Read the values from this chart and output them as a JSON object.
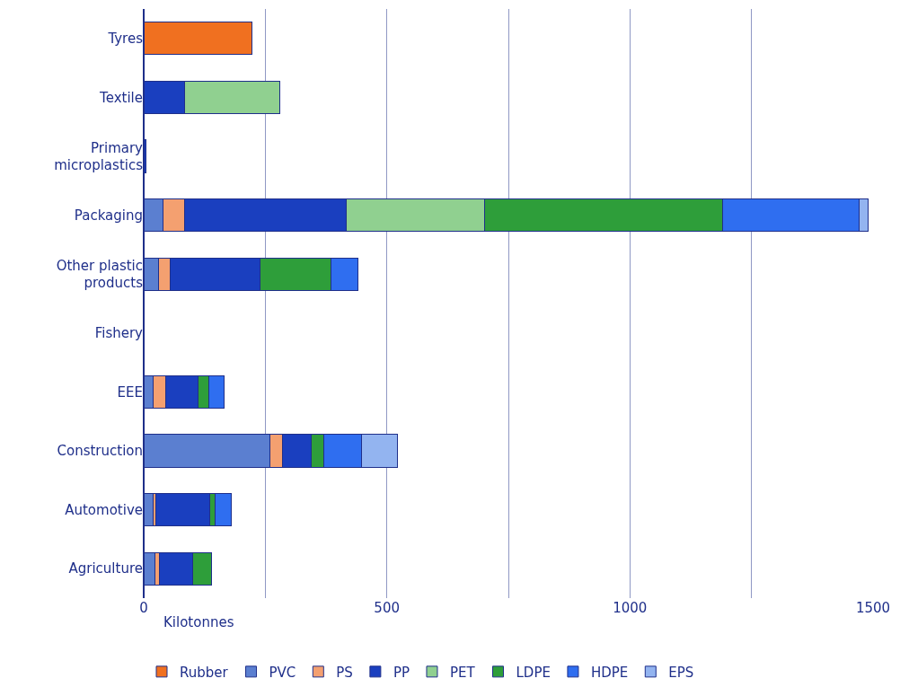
{
  "chart_data": {
    "type": "bar",
    "orientation": "horizontal",
    "stacked": true,
    "xlabel": "Kilotonnes",
    "categories": [
      "Tyres",
      "Textile",
      "Primary microplastics",
      "Packaging",
      "Other plastic products",
      "Fishery",
      "EEE",
      "Construction",
      "Automotive",
      "Agriculture"
    ],
    "series": [
      {
        "name": "Rubber",
        "color": "#f07020",
        "values": [
          223,
          null,
          null,
          null,
          null,
          null,
          null,
          null,
          null,
          null
        ]
      },
      {
        "name": "PVC",
        "color": "#5b7fd0",
        "values": [
          null,
          null,
          null,
          40,
          30,
          null,
          19,
          259,
          19,
          24
        ]
      },
      {
        "name": "PS",
        "color": "#f4a070",
        "values": [
          null,
          null,
          null,
          44,
          24,
          null,
          27,
          27,
          6,
          9
        ]
      },
      {
        "name": "PP",
        "color": "#1a3fbf",
        "values": [
          null,
          84,
          4,
          333,
          186,
          null,
          65,
          58,
          110,
          67
        ]
      },
      {
        "name": "PET",
        "color": "#90d090",
        "values": [
          null,
          195,
          null,
          284,
          null,
          null,
          null,
          null,
          null,
          null
        ]
      },
      {
        "name": "LDPE",
        "color": "#2e9e3a",
        "values": [
          null,
          null,
          null,
          490,
          145,
          null,
          23,
          27,
          12,
          40
        ]
      },
      {
        "name": "HDPE",
        "color": "#2f6ef0",
        "values": [
          null,
          null,
          null,
          281,
          55,
          null,
          31,
          77,
          33,
          null
        ]
      },
      {
        "name": "EPS",
        "color": "#93b4f0",
        "values": [
          null,
          null,
          null,
          18,
          null,
          null,
          null,
          73,
          null,
          null
        ]
      }
    ],
    "xlim": [
      0,
      1500
    ],
    "xticks": [
      0,
      {
        "value": 250,
        "label": null
      },
      500,
      {
        "value": 750,
        "label": null
      },
      1000,
      {
        "value": 1250,
        "label": null
      },
      1500
    ],
    "grid": "x",
    "legend": "bottom"
  }
}
